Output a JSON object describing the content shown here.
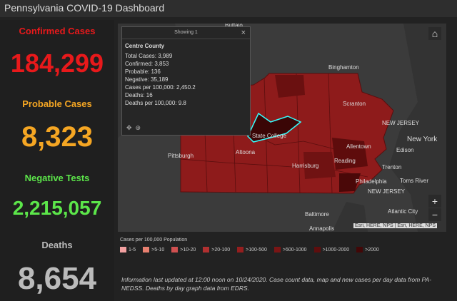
{
  "header": {
    "title": "Pennsylvania COVID-19 Dashboard"
  },
  "stats": [
    {
      "label": "Confirmed Cases",
      "value": "184,299"
    },
    {
      "label": "Probable Cases",
      "value": "8,323"
    },
    {
      "label": "Negative Tests",
      "value": "2,215,057"
    },
    {
      "label": "Deaths",
      "value": "8,654"
    }
  ],
  "popup": {
    "header": "Showing 1",
    "title": "Centre County",
    "lines": [
      "Total Cases: 3,989",
      "Confirmed: 3,853",
      "Probable: 136",
      "Negative: 35,189",
      "Cases per 100,000: 2,450.2",
      "Deaths: 16",
      "Deaths per 100,000: 9.8"
    ]
  },
  "map": {
    "labels": [
      "Buffalo",
      "Binghamton",
      "Scranton",
      "NEW JERSEY",
      "New York",
      "Edison",
      "Allentown",
      "Reading",
      "Trenton",
      "Toms River",
      "Philadelphia",
      "NEW JERSEY",
      "Harrisburg",
      "Altoona",
      "Pittsburgh",
      "State College",
      "Baltimore",
      "Atlantic City",
      "Annapolis"
    ],
    "attribution": "Esri, HERE, NPS | Esri, HERE, NPS"
  },
  "legend": {
    "title": "Cases per 100,000 Population",
    "items": [
      "1-5",
      ">5-10",
      ">10-20",
      ">20-100",
      ">100-500",
      ">500-1000",
      ">1000-2000",
      ">2000"
    ]
  },
  "footer": {
    "text": "Information last updated at 12:00 noon on 10/24/2020. Case count data, map and new cases per day data from PA-NEDSS.  Deaths by day graph data from EDRS."
  }
}
